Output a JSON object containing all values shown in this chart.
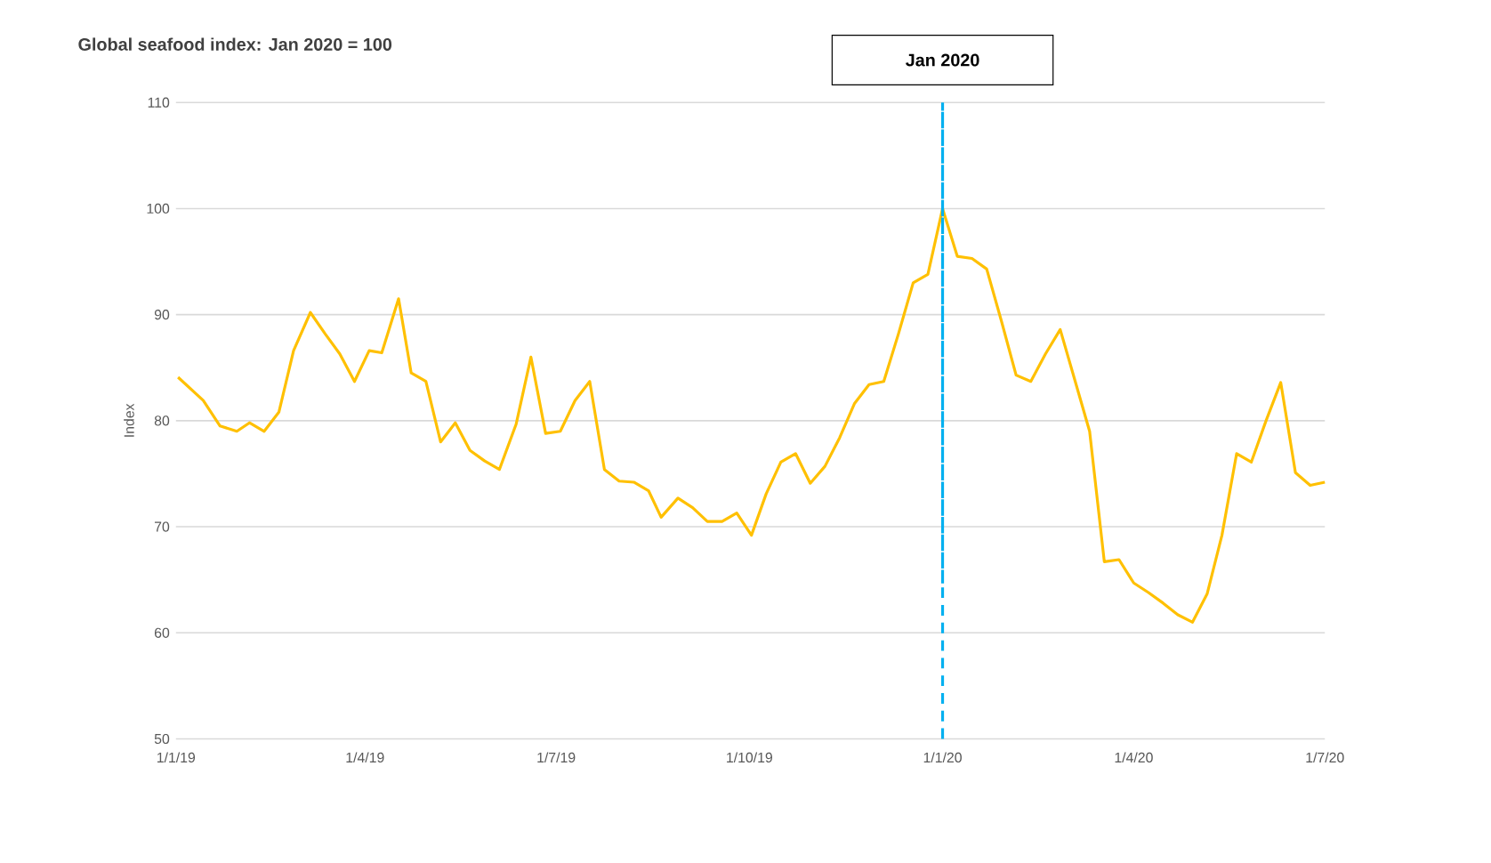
{
  "chart_data": {
    "type": "line",
    "title": "Global seafood index: Jan 2020 = 100",
    "ylabel": "Index",
    "x": [
      "2019-01-02",
      "2019-01-14",
      "2019-01-22",
      "2019-01-30",
      "2019-02-05",
      "2019-02-12",
      "2019-02-19",
      "2019-02-26",
      "2019-03-06",
      "2019-03-13",
      "2019-03-20",
      "2019-03-27",
      "2019-04-03",
      "2019-04-09",
      "2019-04-17",
      "2019-04-23",
      "2019-04-30",
      "2019-05-07",
      "2019-05-14",
      "2019-05-21",
      "2019-05-28",
      "2019-06-04",
      "2019-06-12",
      "2019-06-19",
      "2019-06-26",
      "2019-07-03",
      "2019-07-10",
      "2019-07-17",
      "2019-07-24",
      "2019-07-31",
      "2019-08-07",
      "2019-08-14",
      "2019-08-20",
      "2019-08-28",
      "2019-09-04",
      "2019-09-11",
      "2019-09-18",
      "2019-09-25",
      "2019-10-02",
      "2019-10-09",
      "2019-10-16",
      "2019-10-23",
      "2019-10-30",
      "2019-11-06",
      "2019-11-13",
      "2019-11-20",
      "2019-11-27",
      "2019-12-04",
      "2019-12-11",
      "2019-12-18",
      "2019-12-25",
      "2020-01-01",
      "2020-01-08",
      "2020-01-15",
      "2020-01-22",
      "2020-01-29",
      "2020-02-05",
      "2020-02-12",
      "2020-02-19",
      "2020-02-26",
      "2020-03-04",
      "2020-03-11",
      "2020-03-18",
      "2020-03-25",
      "2020-04-01",
      "2020-04-08",
      "2020-04-15",
      "2020-04-22",
      "2020-04-29",
      "2020-05-06",
      "2020-05-13",
      "2020-05-20",
      "2020-05-27",
      "2020-06-03",
      "2020-06-10",
      "2020-06-17",
      "2020-06-24",
      "2020-07-01"
    ],
    "series": [
      {
        "color": "#ffc000",
        "values": [
          84.1,
          81.9,
          79.5,
          79.0,
          79.8,
          79.0,
          80.8,
          86.6,
          90.2,
          88.2,
          86.3,
          83.7,
          86.6,
          86.4,
          91.5,
          84.5,
          83.7,
          78.0,
          79.8,
          77.2,
          76.2,
          75.4,
          79.7,
          86.0,
          78.8,
          79.0,
          81.9,
          83.7,
          75.4,
          74.3,
          74.2,
          73.4,
          70.9,
          72.7,
          71.8,
          70.5,
          70.5,
          71.3,
          69.2,
          73.1,
          76.1,
          76.9,
          74.1,
          75.7,
          78.4,
          81.6,
          83.4,
          83.7,
          88.2,
          93.0,
          93.8,
          100.0,
          95.5,
          95.3,
          94.3,
          89.4,
          84.3,
          83.7,
          86.3,
          88.6,
          83.8,
          79.0,
          66.7,
          66.9,
          64.7,
          63.8,
          62.8,
          61.7,
          61.0,
          63.7,
          69.2,
          76.9,
          76.1,
          80.0,
          83.6,
          75.1,
          73.9,
          74.2
        ]
      }
    ],
    "xlim": [
      "2019-01-01",
      "2020-07-01"
    ],
    "xticks": [
      {
        "value": "2019-01-01",
        "label": "1/1/19"
      },
      {
        "value": "2019-04-01",
        "label": "1/4/19"
      },
      {
        "value": "2019-07-01",
        "label": "1/7/19"
      },
      {
        "value": "2019-10-01",
        "label": "1/10/19"
      },
      {
        "value": "2020-01-01",
        "label": "1/1/20"
      },
      {
        "value": "2020-04-01",
        "label": "1/4/20"
      },
      {
        "value": "2020-07-01",
        "label": "1/7/20"
      }
    ],
    "ylim": [
      50,
      110
    ],
    "yticks": [
      50,
      60,
      70,
      80,
      90,
      100,
      110
    ],
    "grid": "y",
    "marker": "none",
    "line_style": "solid",
    "ref_lines": [
      {
        "axis": "x",
        "value": "2020-01-01",
        "label": "Jan 2020",
        "color": "#00b0f0",
        "line_style": "dashed"
      }
    ]
  }
}
